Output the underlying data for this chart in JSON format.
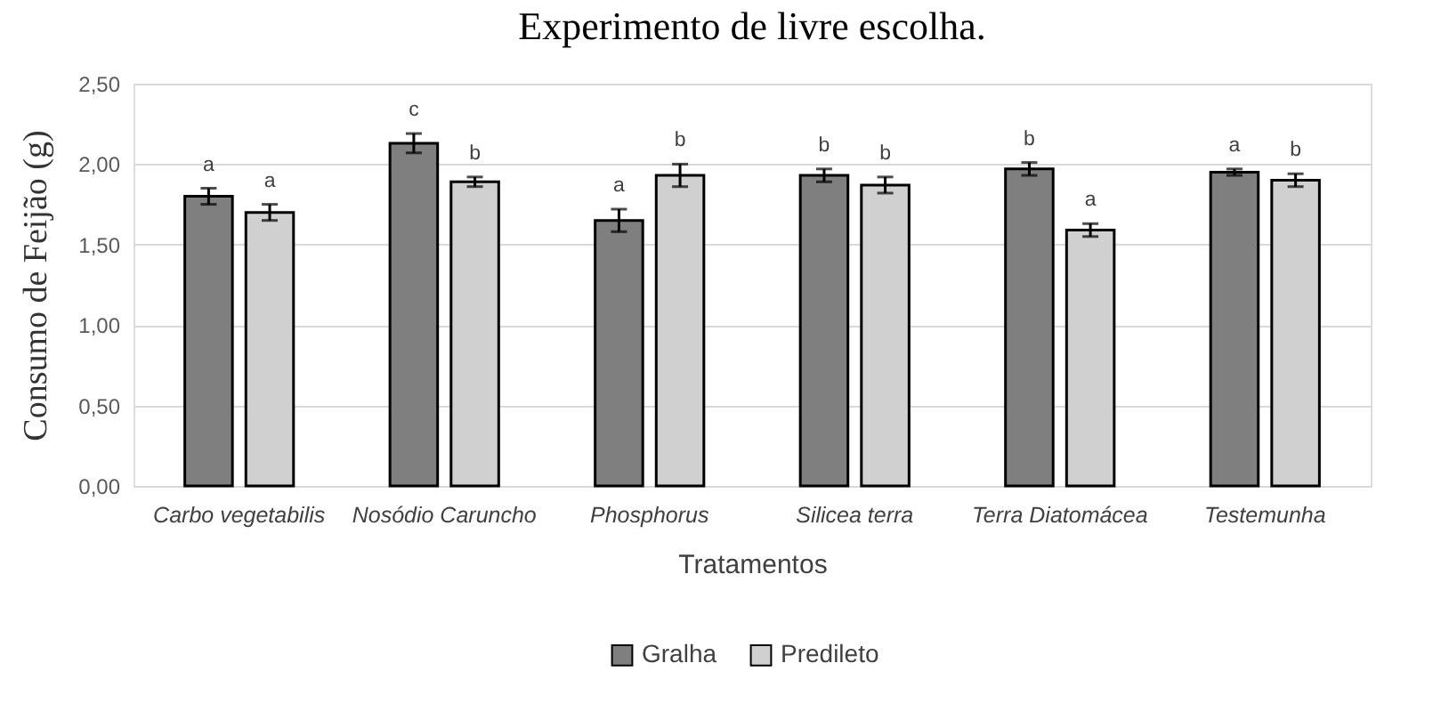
{
  "chart_data": {
    "type": "bar",
    "title": "Experimento de livre escolha.",
    "xlabel": "Tratamentos",
    "ylabel": "Consumo de Feijão (g)",
    "categories": [
      "Carbo vegetabilis",
      "Nosódio Caruncho",
      "Phosphorus",
      "Silicea terra",
      "Terra Diatomácea",
      "Testemunha"
    ],
    "series": [
      {
        "name": "Gralha",
        "color": "#7f7f7f",
        "values": [
          1.8,
          2.13,
          1.65,
          1.93,
          1.97,
          1.95
        ],
        "errors": [
          0.05,
          0.06,
          0.07,
          0.04,
          0.04,
          0.02
        ],
        "value_labels": [
          "a",
          "c",
          "a",
          "b",
          "b",
          "a"
        ]
      },
      {
        "name": "Predileto",
        "color": "#d0d0d0",
        "values": [
          1.7,
          1.89,
          1.93,
          1.87,
          1.59,
          1.9
        ],
        "errors": [
          0.05,
          0.03,
          0.07,
          0.05,
          0.04,
          0.04
        ],
        "value_labels": [
          "a",
          "b",
          "b",
          "b",
          "a",
          "b"
        ]
      }
    ],
    "ylim": [
      0,
      2.5
    ],
    "yticks": [
      {
        "value": 0,
        "label": "0,00"
      },
      {
        "value": 0.5,
        "label": "0,50"
      },
      {
        "value": 1,
        "label": "1,00"
      },
      {
        "value": 1.5,
        "label": "1,50"
      },
      {
        "value": 2,
        "label": "2,00"
      },
      {
        "value": 2.5,
        "label": "2,50"
      }
    ],
    "grid": "y",
    "legend": "bottom"
  }
}
